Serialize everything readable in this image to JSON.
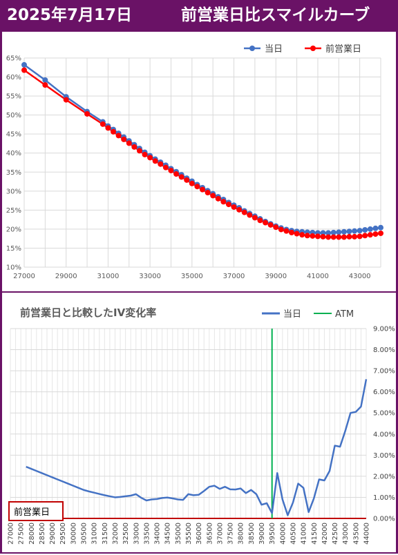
{
  "header": {
    "date": "2025年7月17日",
    "title": "前営業日比スマイルカーブ"
  },
  "colors": {
    "frame": "#6a1266",
    "today": "#4472c4",
    "prev": "#ff0000",
    "iv_line": "#4472c4",
    "atm": "#00b050",
    "baseline": "#c00000"
  },
  "chart_data": [
    {
      "type": "line",
      "title": "",
      "xlabel": "",
      "ylabel": "",
      "xlim": [
        27000,
        44000
      ],
      "ylim": [
        10,
        65
      ],
      "x_ticks": [
        "27000",
        "29000",
        "31000",
        "33000",
        "35000",
        "37000",
        "39000",
        "41000",
        "43000"
      ],
      "y_ticks": [
        "10%",
        "15%",
        "20%",
        "25%",
        "30%",
        "35%",
        "40%",
        "45%",
        "50%",
        "55%",
        "60%",
        "65%"
      ],
      "legend_position": "top-right",
      "grid": true,
      "series": [
        {
          "name": "当日",
          "x": [
            27000,
            28000,
            29000,
            30000,
            30750,
            31000,
            31250,
            31500,
            31750,
            32000,
            32250,
            32500,
            32750,
            33000,
            33250,
            33500,
            33750,
            34000,
            34250,
            34500,
            34750,
            35000,
            35250,
            35500,
            35750,
            36000,
            36250,
            36500,
            36750,
            37000,
            37250,
            37500,
            37750,
            38000,
            38250,
            38500,
            38750,
            39000,
            39250,
            39500,
            39750,
            40000,
            40250,
            40500,
            40750,
            41000,
            41250,
            41500,
            41750,
            42000,
            42250,
            42500,
            42750,
            43000,
            43250,
            43500,
            43750,
            44000
          ],
          "values": [
            63.2,
            59.2,
            54.8,
            50.9,
            48.2,
            47.1,
            46.2,
            45.2,
            44.2,
            43.2,
            42.2,
            41.2,
            40.2,
            39.3,
            38.4,
            37.6,
            36.8,
            35.9,
            35.1,
            34.3,
            33.4,
            32.6,
            31.7,
            30.9,
            30.1,
            29.3,
            28.5,
            27.8,
            27.0,
            26.3,
            25.6,
            24.8,
            24.1,
            23.4,
            22.7,
            22.0,
            21.4,
            20.8,
            20.3,
            19.9,
            19.6,
            19.4,
            19.3,
            19.2,
            19.1,
            19.0,
            19.0,
            19.0,
            19.1,
            19.2,
            19.3,
            19.4,
            19.5,
            19.6,
            19.8,
            20.0,
            20.2,
            20.4
          ]
        },
        {
          "name": "前営業日",
          "x": [
            27000,
            28000,
            29000,
            30000,
            30750,
            31000,
            31250,
            31500,
            31750,
            32000,
            32250,
            32500,
            32750,
            33000,
            33250,
            33500,
            33750,
            34000,
            34250,
            34500,
            34750,
            35000,
            35250,
            35500,
            35750,
            36000,
            36250,
            36500,
            36750,
            37000,
            37250,
            37500,
            37750,
            38000,
            38250,
            38500,
            38750,
            39000,
            39250,
            39500,
            39750,
            40000,
            40250,
            40500,
            40750,
            41000,
            41250,
            41500,
            41750,
            42000,
            42250,
            42500,
            42750,
            43000,
            43250,
            43500,
            43750,
            44000
          ],
          "values": [
            61.8,
            57.9,
            54.0,
            50.3,
            47.6,
            46.6,
            45.6,
            44.6,
            43.6,
            42.6,
            41.6,
            40.6,
            39.6,
            38.8,
            37.9,
            37.1,
            36.2,
            35.4,
            34.5,
            33.7,
            32.9,
            32.0,
            31.2,
            30.4,
            29.6,
            28.8,
            28.0,
            27.2,
            26.5,
            25.8,
            25.1,
            24.4,
            23.7,
            23.0,
            22.3,
            21.7,
            21.1,
            20.5,
            19.9,
            19.5,
            19.1,
            18.8,
            18.5,
            18.3,
            18.2,
            18.1,
            18.0,
            17.9,
            17.9,
            17.9,
            17.9,
            18.0,
            18.0,
            18.1,
            18.3,
            18.5,
            18.7,
            18.9
          ]
        }
      ]
    },
    {
      "type": "line",
      "title": "前営業日と比較したIV変化率",
      "xlabel": "",
      "ylabel": "",
      "ylim": [
        0,
        9
      ],
      "y_ticks": [
        "0.00%",
        "1.00%",
        "2.00%",
        "3.00%",
        "4.00%",
        "5.00%",
        "6.00%",
        "7.00%",
        "8.00%",
        "9.00%"
      ],
      "legend_position": "top-right",
      "grid": true,
      "baseline_label": "前営業日",
      "atm_label": "ATM",
      "atm_strike": 39500,
      "categories": [
        "27000",
        "27250",
        "27500",
        "27750",
        "28000",
        "28250",
        "28500",
        "28750",
        "29000",
        "29250",
        "29500",
        "29750",
        "30000",
        "30250",
        "30500",
        "30750",
        "31000",
        "31250",
        "31500",
        "31750",
        "32000",
        "32250",
        "32500",
        "32750",
        "33000",
        "33250",
        "33500",
        "33750",
        "34000",
        "34250",
        "34500",
        "34750",
        "35000",
        "35250",
        "35500",
        "35750",
        "36000",
        "36250",
        "36500",
        "36750",
        "37000",
        "37250",
        "37500",
        "37750",
        "38000",
        "38250",
        "38500",
        "38750",
        "39000",
        "39250",
        "39500",
        "39750",
        "40000",
        "40250",
        "40500",
        "40750",
        "41000",
        "41250",
        "41500",
        "41750",
        "42000",
        "42250",
        "42500",
        "42750",
        "43000",
        "43250",
        "43500",
        "43750",
        "44000"
      ],
      "tick_labels": [
        "27000",
        "27500",
        "28000",
        "28500",
        "29000",
        "29500",
        "30000",
        "30500",
        "31000",
        "31500",
        "32000",
        "32500",
        "33000",
        "33500",
        "34000",
        "34500",
        "35000",
        "35500",
        "36000",
        "36500",
        "37000",
        "37500",
        "38000",
        "38500",
        "39000",
        "39500",
        "40000",
        "40500",
        "41000",
        "41500",
        "42000",
        "42500",
        "43000",
        "43500",
        "44000"
      ],
      "series": [
        {
          "name": "当日",
          "values": [
            null,
            null,
            null,
            2.45,
            2.35,
            2.25,
            2.15,
            2.05,
            1.95,
            1.85,
            1.75,
            1.65,
            1.55,
            1.45,
            1.35,
            1.28,
            1.22,
            1.16,
            1.1,
            1.05,
            1.0,
            1.02,
            1.05,
            1.08,
            1.15,
            0.98,
            0.85,
            0.9,
            0.92,
            0.97,
            0.99,
            0.95,
            0.9,
            0.88,
            1.15,
            1.1,
            1.12,
            1.3,
            1.5,
            1.55,
            1.4,
            1.5,
            1.38,
            1.37,
            1.42,
            1.2,
            1.35,
            1.15,
            0.65,
            0.72,
            0.25,
            2.15,
            0.9,
            0.15,
            0.75,
            1.65,
            1.45,
            0.3,
            0.95,
            1.85,
            1.8,
            2.25,
            3.45,
            3.4,
            4.15,
            5.0,
            5.05,
            5.3,
            6.6
          ]
        }
      ]
    }
  ]
}
